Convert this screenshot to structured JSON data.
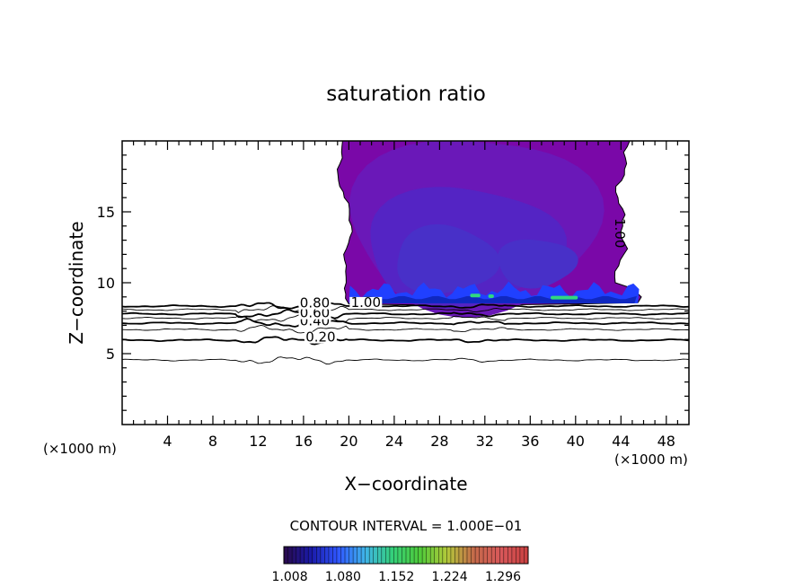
{
  "chart_data": {
    "type": "contour",
    "title": "saturation ratio",
    "xlabel": "X−coordinate",
    "ylabel": "Z−coordinate",
    "x_unit_label": "(×1000 m)",
    "y_unit_label": "(×1000 m)",
    "xlim": [
      0,
      50
    ],
    "ylim": [
      0,
      20
    ],
    "x_ticks": [
      4,
      8,
      12,
      16,
      20,
      24,
      28,
      32,
      36,
      40,
      44,
      48
    ],
    "y_ticks": [
      5,
      10,
      15
    ],
    "contour_interval_text": "CONTOUR INTERVAL = 1.000E−01",
    "contour_labels": [
      {
        "text": "0.20",
        "x": 17.5,
        "z": 5.85
      },
      {
        "text": "0.40",
        "x": 17.0,
        "z": 7.0
      },
      {
        "text": "0.60",
        "x": 17.0,
        "z": 7.55
      },
      {
        "text": "0.80",
        "x": 17.0,
        "z": 8.25
      },
      {
        "text": "1.00",
        "x": 21.5,
        "z": 8.3
      },
      {
        "text": "1.00",
        "x": 43.5,
        "z": 13.5
      }
    ],
    "line_contours": [
      {
        "level": 0.1,
        "z": 4.55,
        "thick": false
      },
      {
        "level": 0.2,
        "z": 5.95,
        "thick": true
      },
      {
        "level": 0.3,
        "z": 6.7,
        "thick": false
      },
      {
        "level": 0.4,
        "z": 7.15,
        "thick": true
      },
      {
        "level": 0.5,
        "z": 7.5,
        "thick": false
      },
      {
        "level": 0.6,
        "z": 7.8,
        "thick": true
      },
      {
        "level": 0.7,
        "z": 8.1,
        "thick": false
      },
      {
        "level": 0.8,
        "z": 8.35,
        "thick": true
      }
    ],
    "colorbar": {
      "min": 1.0,
      "max": 1.33,
      "tick_labels": [
        "1.008",
        "1.080",
        "1.152",
        "1.224",
        "1.296"
      ],
      "colors": [
        "#2a0a4a",
        "#1a1aa8",
        "#2f56ff",
        "#3fb4e8",
        "#34d07a",
        "#4ecb3a",
        "#b2c93a",
        "#c56a4a",
        "#d8585a",
        "#c84040"
      ]
    },
    "fill_colors": {
      "outer": "#7a08a8",
      "mid": "#6a18b8",
      "inner": "#5424c4",
      "core": "#4830c8",
      "base_blue": "#2040ff",
      "base_dark": "#1028c0",
      "green": "#30d880"
    }
  }
}
